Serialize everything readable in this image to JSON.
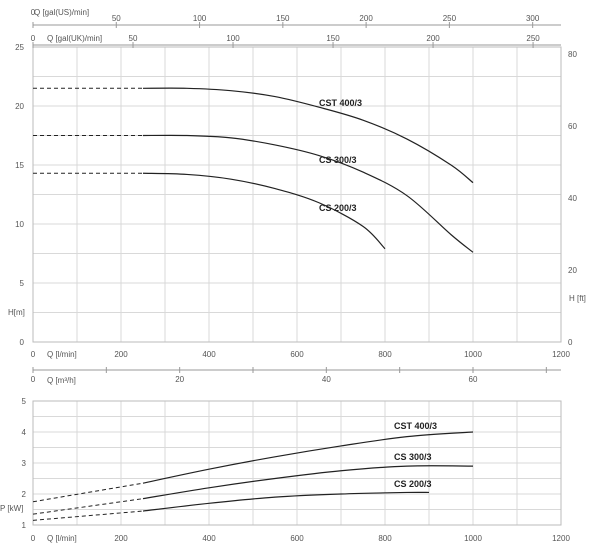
{
  "charts": {
    "head": {
      "flow_us_label": "Q [gal(US)/min]",
      "flow_uk_label": "Q [gal(UK)/min]",
      "flow_lmin_label": "Q [l/min]",
      "y_left_label": "H[m]",
      "y_right_label": "H [ft]"
    },
    "power": {
      "flow_m3h_label": "Q [m³/h]",
      "flow_lmin_label": "Q [l/min]",
      "y_left_label": "P [kW]"
    }
  },
  "chart_data": [
    {
      "type": "line",
      "title": "",
      "xlabel": "Q [l/min]",
      "ylabel": "H[m]",
      "y2label": "H [ft]",
      "xlim": [
        0,
        1200
      ],
      "ylim": [
        0,
        25
      ],
      "y2lim": [
        0,
        82
      ],
      "x_ticks": [
        0,
        200,
        400,
        600,
        800,
        1000,
        1200
      ],
      "y_ticks": [
        0,
        5,
        10,
        15,
        20,
        25
      ],
      "y2_ticks": [
        0,
        20,
        40,
        60,
        80
      ],
      "top_axes": [
        {
          "label": "Q [gal(US)/min]",
          "ticks": [
            0,
            50,
            100,
            150,
            200,
            250,
            300
          ]
        },
        {
          "label": "Q [gal(UK)/min]",
          "ticks": [
            0,
            50,
            100,
            150,
            200,
            250
          ]
        }
      ],
      "grid": true,
      "series": [
        {
          "name": "CST 400/3",
          "x": [
            250,
            350,
            450,
            550,
            650,
            750,
            850,
            950,
            1000
          ],
          "y": [
            21.5,
            21.5,
            21.3,
            20.8,
            19.9,
            18.8,
            17.2,
            15.0,
            13.5
          ],
          "dashed_from": [
            0,
            21.5
          ]
        },
        {
          "name": "CS 300/3",
          "x": [
            250,
            350,
            450,
            550,
            650,
            750,
            850,
            950,
            1000
          ],
          "y": [
            17.5,
            17.5,
            17.3,
            16.7,
            15.8,
            14.4,
            12.4,
            9.1,
            7.6
          ],
          "dashed_from": [
            0,
            17.5
          ]
        },
        {
          "name": "CS 200/3",
          "x": [
            250,
            350,
            450,
            550,
            650,
            750,
            800
          ],
          "y": [
            14.3,
            14.2,
            13.8,
            13.0,
            11.8,
            9.8,
            7.9
          ],
          "dashed_from": [
            0,
            14.3
          ]
        }
      ]
    },
    {
      "type": "line",
      "title": "",
      "xlabel": "Q [l/min]",
      "ylabel": "P [kW]",
      "xlim": [
        0,
        1200
      ],
      "ylim": [
        1,
        5
      ],
      "x_ticks": [
        0,
        200,
        400,
        600,
        800,
        1000,
        1200
      ],
      "y_ticks": [
        1,
        2,
        3,
        4,
        5
      ],
      "top_axes": [
        {
          "label": "Q [m³/h]",
          "ticks": [
            0,
            20,
            40,
            60
          ]
        }
      ],
      "grid": true,
      "series": [
        {
          "name": "CST 400/3",
          "x": [
            250,
            400,
            550,
            700,
            850,
            1000
          ],
          "y": [
            2.35,
            2.8,
            3.2,
            3.55,
            3.85,
            4.0
          ],
          "dashed_from": [
            0,
            1.75
          ]
        },
        {
          "name": "CS 300/3",
          "x": [
            250,
            400,
            550,
            700,
            850,
            1000
          ],
          "y": [
            1.85,
            2.2,
            2.5,
            2.75,
            2.9,
            2.9
          ],
          "dashed_from": [
            0,
            1.35
          ]
        },
        {
          "name": "CS 200/3",
          "x": [
            250,
            400,
            550,
            700,
            850,
            900
          ],
          "y": [
            1.45,
            1.7,
            1.9,
            2.0,
            2.05,
            2.05
          ],
          "dashed_from": [
            0,
            1.15
          ]
        }
      ]
    }
  ]
}
